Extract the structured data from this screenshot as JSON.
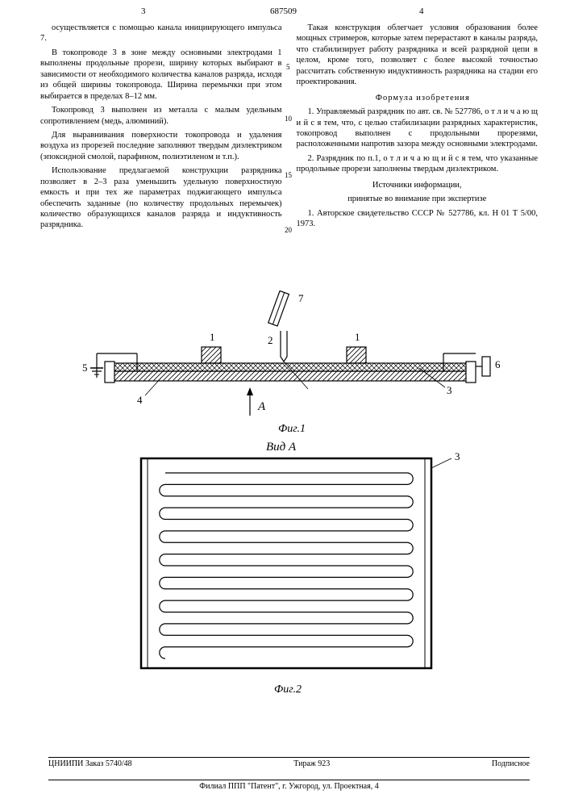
{
  "header": {
    "doc_number": "687509",
    "page_left": "3",
    "page_right": "4"
  },
  "line_numbers": [
    "5",
    "10",
    "15",
    "20"
  ],
  "left_column": {
    "p1": "осуществляется с помощью канала инициирующего импульса 7.",
    "p2": "В токопроводе 3 в зоне между основными электродами 1 выполнены продольные прорези, ширину которых выбирают в зависимости от необходимого количества каналов разряда, исходя из общей ширины токопровода. Ширина перемычки при этом выбирается в пределах 8–12 мм.",
    "p3": "Токопровод 3 выполнен из металла с малым удельным сопротивлением (медь, алюминий).",
    "p4": "Для выравнивания поверхности токопровода и удаления воздуха из прорезей последние заполняют твердым диэлектриком (эпоксидной смолой, парафином, полиэтиленом и т.п.).",
    "p5": "Использование предлагаемой конструкции разрядника позволяет в 2–3 раза уменьшить удельную поверхностную емкость и при тех же параметрах поджигающего импульса обеспечить заданные (по количеству продольных перемычек) количество образующихся каналов разряда и индуктивность разрядника."
  },
  "right_column": {
    "p1": "Такая конструкция облегчает условия образования более мощных стримеров, которые затем перерастают в каналы разряда, что стабилизирует работу разрядника и всей разрядной цепи в целом, кроме того, позволяет с более высокой точностью рассчитать собственную индуктивность разрядника на стадии его проектирования.",
    "formula_title": "Формула изобретения",
    "claim1": "1. Управляемый разрядник по авт. св. № 527786, о т л и ч а ю щ и й с я  тем, что, с целью стабилизации разрядных характеристик, токопровод выполнен с продольными прорезями, расположенными напротив зазора между основными электродами.",
    "claim2": "2. Разрядник по п.1, о т л и ч а ю щ и й с я  тем, что указанные продольные прорези заполнены твердым диэлектриком.",
    "sources_title1": "Источники информации,",
    "sources_title2": "принятые во внимание при экспертизе",
    "ref1": "1. Авторское свидетельство СССР № 527786, кл. H 01 T 5/00, 1973."
  },
  "figures": {
    "fig1": {
      "label": "Фиг.1",
      "view_arrow": "А",
      "refs": {
        "r1": "1",
        "r2": "2",
        "r3": "3",
        "r4": "4",
        "r5": "5",
        "r6": "6",
        "r7": "7"
      },
      "colors": {
        "hatch": "#000000",
        "fill": "#ffffff",
        "line": "#000000"
      },
      "line_width": 1.2
    },
    "fig2": {
      "label": "Фиг.2",
      "title": "Вид А",
      "ref": "3",
      "slot_count": 16,
      "stroke": "#000000",
      "stroke_width": 1.2,
      "outer_w": 360,
      "outer_h": 260
    }
  },
  "footer": {
    "left": "ЦНИИПИ Заказ 5740/48",
    "center": "Тираж 923",
    "right": "Подписное",
    "line2": "Филиал ППП \"Патент\", г. Ужгород, ул. Проектная, 4"
  }
}
